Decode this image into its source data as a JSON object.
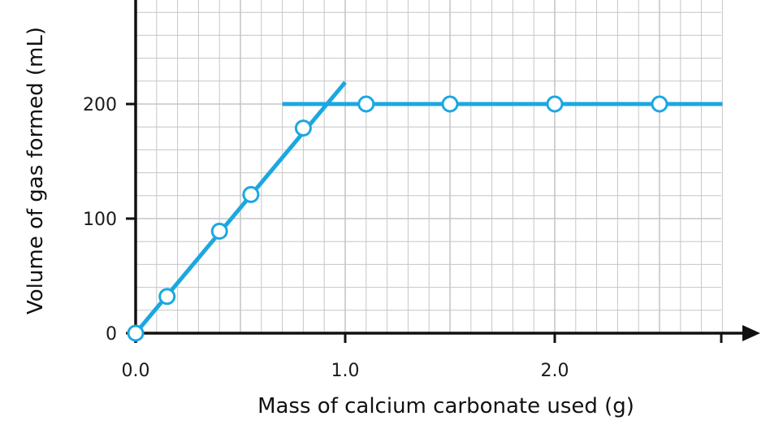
{
  "chart_data": {
    "type": "scatter",
    "xlabel": "Mass of calcium carbonate used (g)",
    "ylabel": "Volume of gas formed (mL)",
    "xlim": [
      0.0,
      2.8
    ],
    "ylim": [
      0,
      290
    ],
    "x_ticks": [
      {
        "value": 0.0,
        "label": "0.0"
      },
      {
        "value": 1.0,
        "label": "1.0"
      },
      {
        "value": 2.0,
        "label": "2.0"
      }
    ],
    "y_ticks": [
      {
        "value": 0,
        "label": "0"
      },
      {
        "value": 100,
        "label": "100"
      },
      {
        "value": 200,
        "label": "200"
      }
    ],
    "grid": true,
    "grid_minor_x": 0.1,
    "grid_minor_y": 20,
    "points": [
      {
        "x": 0.0,
        "y": 0
      },
      {
        "x": 0.15,
        "y": 32
      },
      {
        "x": 0.4,
        "y": 89
      },
      {
        "x": 0.55,
        "y": 121
      },
      {
        "x": 0.8,
        "y": 179
      },
      {
        "x": 1.1,
        "y": 200
      },
      {
        "x": 1.5,
        "y": 200
      },
      {
        "x": 2.0,
        "y": 200
      },
      {
        "x": 2.5,
        "y": 200
      }
    ],
    "lines": [
      {
        "x": [
          0.0,
          1.0
        ],
        "y": [
          0,
          219
        ]
      },
      {
        "x": [
          0.7,
          2.8
        ],
        "y": [
          200,
          200
        ]
      }
    ],
    "colors": {
      "series": "#1ba8e0",
      "grid": "#c6c6c6",
      "axis": "#111111",
      "marker_fill": "#ffffff"
    }
  }
}
